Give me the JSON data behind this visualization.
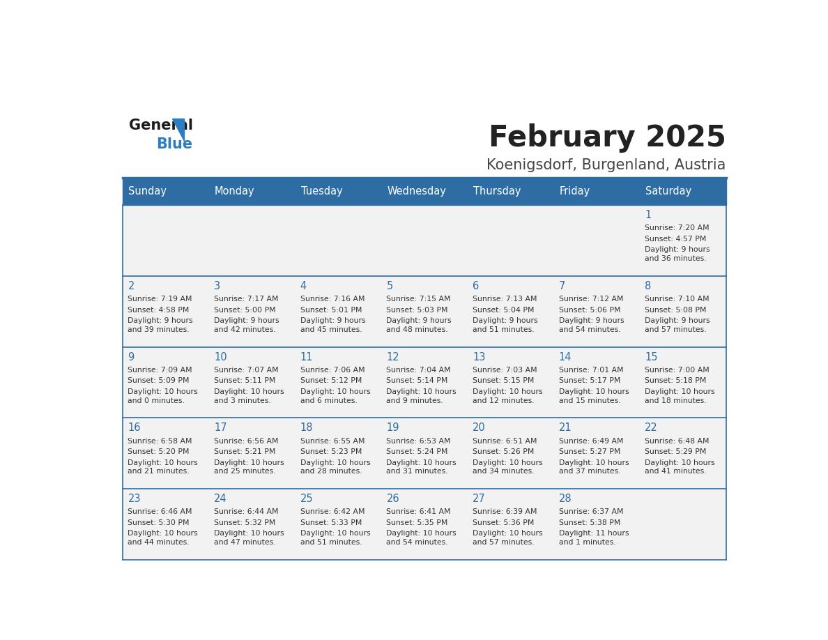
{
  "title": "February 2025",
  "subtitle": "Koenigsdorf, Burgenland, Austria",
  "days_of_week": [
    "Sunday",
    "Monday",
    "Tuesday",
    "Wednesday",
    "Thursday",
    "Friday",
    "Saturday"
  ],
  "header_bg_color": "#2E6DA4",
  "header_text_color": "#FFFFFF",
  "cell_bg_color": "#F2F2F2",
  "border_color": "#2E6DA4",
  "day_number_color": "#2E6DA4",
  "text_color": "#333333",
  "title_color": "#222222",
  "subtitle_color": "#444444",
  "logo_general_color": "#1a1a1a",
  "logo_blue_color": "#2E7DC0",
  "calendar_data": [
    {
      "day": 1,
      "col": 6,
      "row": 0,
      "sunrise": "7:20 AM",
      "sunset": "4:57 PM",
      "daylight_hours": 9,
      "daylight_minutes": 36
    },
    {
      "day": 2,
      "col": 0,
      "row": 1,
      "sunrise": "7:19 AM",
      "sunset": "4:58 PM",
      "daylight_hours": 9,
      "daylight_minutes": 39
    },
    {
      "day": 3,
      "col": 1,
      "row": 1,
      "sunrise": "7:17 AM",
      "sunset": "5:00 PM",
      "daylight_hours": 9,
      "daylight_minutes": 42
    },
    {
      "day": 4,
      "col": 2,
      "row": 1,
      "sunrise": "7:16 AM",
      "sunset": "5:01 PM",
      "daylight_hours": 9,
      "daylight_minutes": 45
    },
    {
      "day": 5,
      "col": 3,
      "row": 1,
      "sunrise": "7:15 AM",
      "sunset": "5:03 PM",
      "daylight_hours": 9,
      "daylight_minutes": 48
    },
    {
      "day": 6,
      "col": 4,
      "row": 1,
      "sunrise": "7:13 AM",
      "sunset": "5:04 PM",
      "daylight_hours": 9,
      "daylight_minutes": 51
    },
    {
      "day": 7,
      "col": 5,
      "row": 1,
      "sunrise": "7:12 AM",
      "sunset": "5:06 PM",
      "daylight_hours": 9,
      "daylight_minutes": 54
    },
    {
      "day": 8,
      "col": 6,
      "row": 1,
      "sunrise": "7:10 AM",
      "sunset": "5:08 PM",
      "daylight_hours": 9,
      "daylight_minutes": 57
    },
    {
      "day": 9,
      "col": 0,
      "row": 2,
      "sunrise": "7:09 AM",
      "sunset": "5:09 PM",
      "daylight_hours": 10,
      "daylight_minutes": 0
    },
    {
      "day": 10,
      "col": 1,
      "row": 2,
      "sunrise": "7:07 AM",
      "sunset": "5:11 PM",
      "daylight_hours": 10,
      "daylight_minutes": 3
    },
    {
      "day": 11,
      "col": 2,
      "row": 2,
      "sunrise": "7:06 AM",
      "sunset": "5:12 PM",
      "daylight_hours": 10,
      "daylight_minutes": 6
    },
    {
      "day": 12,
      "col": 3,
      "row": 2,
      "sunrise": "7:04 AM",
      "sunset": "5:14 PM",
      "daylight_hours": 10,
      "daylight_minutes": 9
    },
    {
      "day": 13,
      "col": 4,
      "row": 2,
      "sunrise": "7:03 AM",
      "sunset": "5:15 PM",
      "daylight_hours": 10,
      "daylight_minutes": 12
    },
    {
      "day": 14,
      "col": 5,
      "row": 2,
      "sunrise": "7:01 AM",
      "sunset": "5:17 PM",
      "daylight_hours": 10,
      "daylight_minutes": 15
    },
    {
      "day": 15,
      "col": 6,
      "row": 2,
      "sunrise": "7:00 AM",
      "sunset": "5:18 PM",
      "daylight_hours": 10,
      "daylight_minutes": 18
    },
    {
      "day": 16,
      "col": 0,
      "row": 3,
      "sunrise": "6:58 AM",
      "sunset": "5:20 PM",
      "daylight_hours": 10,
      "daylight_minutes": 21
    },
    {
      "day": 17,
      "col": 1,
      "row": 3,
      "sunrise": "6:56 AM",
      "sunset": "5:21 PM",
      "daylight_hours": 10,
      "daylight_minutes": 25
    },
    {
      "day": 18,
      "col": 2,
      "row": 3,
      "sunrise": "6:55 AM",
      "sunset": "5:23 PM",
      "daylight_hours": 10,
      "daylight_minutes": 28
    },
    {
      "day": 19,
      "col": 3,
      "row": 3,
      "sunrise": "6:53 AM",
      "sunset": "5:24 PM",
      "daylight_hours": 10,
      "daylight_minutes": 31
    },
    {
      "day": 20,
      "col": 4,
      "row": 3,
      "sunrise": "6:51 AM",
      "sunset": "5:26 PM",
      "daylight_hours": 10,
      "daylight_minutes": 34
    },
    {
      "day": 21,
      "col": 5,
      "row": 3,
      "sunrise": "6:49 AM",
      "sunset": "5:27 PM",
      "daylight_hours": 10,
      "daylight_minutes": 37
    },
    {
      "day": 22,
      "col": 6,
      "row": 3,
      "sunrise": "6:48 AM",
      "sunset": "5:29 PM",
      "daylight_hours": 10,
      "daylight_minutes": 41
    },
    {
      "day": 23,
      "col": 0,
      "row": 4,
      "sunrise": "6:46 AM",
      "sunset": "5:30 PM",
      "daylight_hours": 10,
      "daylight_minutes": 44
    },
    {
      "day": 24,
      "col": 1,
      "row": 4,
      "sunrise": "6:44 AM",
      "sunset": "5:32 PM",
      "daylight_hours": 10,
      "daylight_minutes": 47
    },
    {
      "day": 25,
      "col": 2,
      "row": 4,
      "sunrise": "6:42 AM",
      "sunset": "5:33 PM",
      "daylight_hours": 10,
      "daylight_minutes": 51
    },
    {
      "day": 26,
      "col": 3,
      "row": 4,
      "sunrise": "6:41 AM",
      "sunset": "5:35 PM",
      "daylight_hours": 10,
      "daylight_minutes": 54
    },
    {
      "day": 27,
      "col": 4,
      "row": 4,
      "sunrise": "6:39 AM",
      "sunset": "5:36 PM",
      "daylight_hours": 10,
      "daylight_minutes": 57
    },
    {
      "day": 28,
      "col": 5,
      "row": 4,
      "sunrise": "6:37 AM",
      "sunset": "5:38 PM",
      "daylight_hours": 11,
      "daylight_minutes": 1
    }
  ],
  "num_rows": 5,
  "num_cols": 7
}
